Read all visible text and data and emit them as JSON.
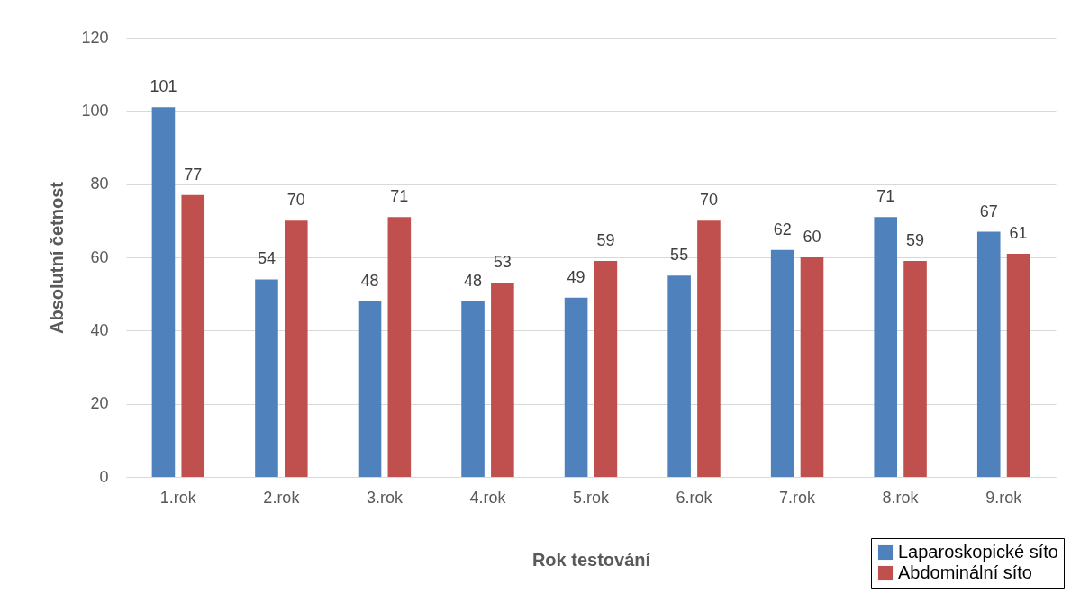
{
  "chart_data": {
    "type": "bar",
    "xlabel": "Rok testování",
    "ylabel": "Absolutní četnost",
    "categories": [
      "1.rok",
      "2.rok",
      "3.rok",
      "4.rok",
      "5.rok",
      "6.rok",
      "7.rok",
      "8.rok",
      "9.rok"
    ],
    "series": [
      {
        "name": "Laparoskopické síto",
        "color": "#4f81bd",
        "values": [
          101,
          54,
          48,
          48,
          49,
          55,
          62,
          71,
          67
        ]
      },
      {
        "name": "Abdominální síto",
        "color": "#c0504d",
        "values": [
          77,
          70,
          71,
          53,
          59,
          70,
          60,
          59,
          61
        ]
      }
    ],
    "ylim": [
      0,
      120
    ],
    "yticks": [
      0,
      20,
      40,
      60,
      80,
      100,
      120
    ],
    "grid": "y",
    "legend": "bottom right",
    "data_labels": true
  }
}
